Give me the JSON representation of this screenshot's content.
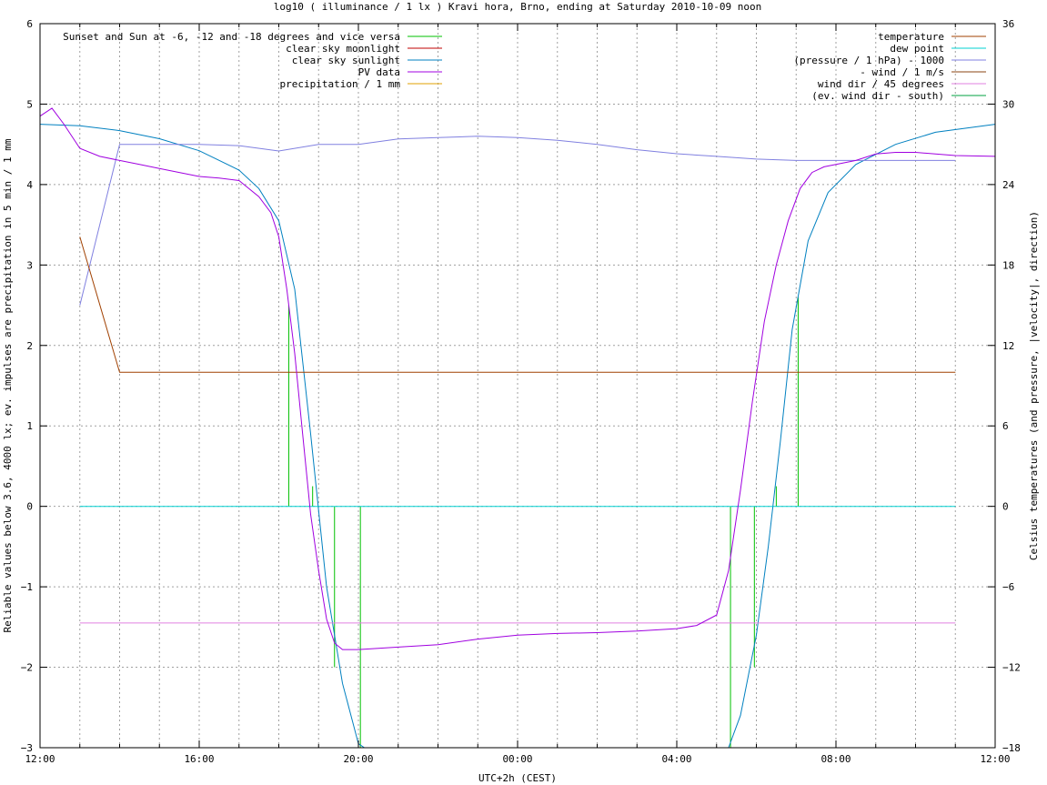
{
  "chart_data": {
    "type": "line",
    "title": "log10 ( illuminance / 1 lx ) Kravi hora, Brno, ending at Saturday 2010-10-09 noon",
    "xlabel": "UTC+2h (CEST)",
    "ylabel": "Reliable values below 3.6, 4000 lx; ev. impulses are precipitation in 5 min / 1 mm",
    "y2label": "Celsius temperatures (and pressure, |velocity|, direction)",
    "x_unit": "hours since 2010-10-08 12:00 (CEST)",
    "xlim": [
      0,
      24
    ],
    "ylim": [
      -3,
      6
    ],
    "y2lim": [
      -18,
      36
    ],
    "grid": true,
    "x_ticks": [
      {
        "value": 0,
        "label": "12:00"
      },
      {
        "value": 4,
        "label": "16:00"
      },
      {
        "value": 8,
        "label": "20:00"
      },
      {
        "value": 12,
        "label": "00:00"
      },
      {
        "value": 16,
        "label": "04:00"
      },
      {
        "value": 20,
        "label": "08:00"
      },
      {
        "value": 24,
        "label": "12:00"
      }
    ],
    "y_ticks": [
      {
        "value": 6,
        "label": "6"
      },
      {
        "value": 5,
        "label": "5"
      },
      {
        "value": 4,
        "label": "4"
      },
      {
        "value": 3,
        "label": "3"
      },
      {
        "value": 2,
        "label": "2"
      },
      {
        "value": 1,
        "label": "1"
      },
      {
        "value": 0,
        "label": "0"
      },
      {
        "value": -1,
        "label": "−1"
      },
      {
        "value": -2,
        "label": "−2"
      },
      {
        "value": -3,
        "label": "−3"
      }
    ],
    "y2_ticks": [
      {
        "value": 36,
        "label": "36"
      },
      {
        "value": 30,
        "label": "30"
      },
      {
        "value": 24,
        "label": "24"
      },
      {
        "value": 18,
        "label": "18"
      },
      {
        "value": 12,
        "label": "12"
      },
      {
        "value": 6,
        "label": "6"
      },
      {
        "value": 0,
        "label": "0"
      },
      {
        "value": -6,
        "label": "−6"
      },
      {
        "value": -12,
        "label": "−12"
      },
      {
        "value": -18,
        "label": "−18"
      }
    ],
    "legend_left": [
      {
        "name": "Sunset and Sun at -6, -12 and -18 degrees and vice versa",
        "color": "#00c000"
      },
      {
        "name": "clear sky moonlight",
        "color": "#c00000"
      },
      {
        "name": "clear sky sunlight",
        "color": "#0080c0"
      },
      {
        "name": "PV data",
        "color": "#a000e0"
      },
      {
        "name": "precipitation / 1 mm",
        "color": "#e0a000"
      }
    ],
    "legend_right": [
      {
        "name": "temperature",
        "color": "#a04000"
      },
      {
        "name": "dew point",
        "color": "#00d0d0"
      },
      {
        "name": "(pressure / 1 hPa) - 1000",
        "color": "#8080e0"
      },
      {
        "name": "- wind / 1 m/s",
        "color": "#8b4513"
      },
      {
        "name": "wind dir / 45 degrees",
        "color": "#e080e0"
      },
      {
        "name": "(ev. wind dir - south)",
        "color": "#00a040"
      }
    ],
    "sun_events": [
      {
        "x": 6.25,
        "y": 2.5
      },
      {
        "x": 6.85,
        "y": 0.25
      },
      {
        "x": 7.4,
        "y": -2.0
      },
      {
        "x": 8.05,
        "y": -3.0
      },
      {
        "x": 17.35,
        "y": -3.0
      },
      {
        "x": 17.95,
        "y": -2.0
      },
      {
        "x": 18.5,
        "y": 0.25
      },
      {
        "x": 19.05,
        "y": 2.6
      }
    ],
    "clear_sky_sunlight": {
      "x": [
        0,
        1,
        2,
        3,
        4,
        5,
        5.5,
        6,
        6.4,
        6.8,
        7.2,
        7.6,
        8.0,
        8.15,
        17.3,
        17.6,
        18.0,
        18.3,
        18.6,
        18.9,
        19.3,
        19.8,
        20.5,
        21.5,
        22.5,
        24
      ],
      "y": [
        4.75,
        4.73,
        4.67,
        4.57,
        4.42,
        4.18,
        3.95,
        3.55,
        2.7,
        0.9,
        -1.0,
        -2.2,
        -2.95,
        -3.0,
        -3.0,
        -2.6,
        -1.6,
        -0.5,
        0.8,
        2.2,
        3.3,
        3.9,
        4.25,
        4.5,
        4.65,
        4.75
      ]
    },
    "pv_data": {
      "x": [
        0,
        0.3,
        0.6,
        1.0,
        1.5,
        2.0,
        2.5,
        3.0,
        3.5,
        4.0,
        4.5,
        5.0,
        5.5,
        5.8,
        6.0,
        6.2,
        6.4,
        6.6,
        6.8,
        7.0,
        7.2,
        7.4,
        7.6,
        8.0,
        9.0,
        10.0,
        11.0,
        12.0,
        13.0,
        14.0,
        15.0,
        16.0,
        16.5,
        17.0,
        17.3,
        17.6,
        17.9,
        18.2,
        18.5,
        18.8,
        19.1,
        19.4,
        19.7,
        20.0,
        20.5,
        21.0,
        21.5,
        22.0,
        22.5,
        23.0,
        24.0
      ],
      "y": [
        4.85,
        4.95,
        4.75,
        4.45,
        4.35,
        4.3,
        4.25,
        4.2,
        4.15,
        4.1,
        4.08,
        4.05,
        3.85,
        3.65,
        3.35,
        2.7,
        1.9,
        0.9,
        -0.1,
        -0.8,
        -1.4,
        -1.7,
        -1.78,
        -1.78,
        -1.75,
        -1.72,
        -1.65,
        -1.6,
        -1.58,
        -1.57,
        -1.55,
        -1.52,
        -1.48,
        -1.35,
        -0.8,
        0.2,
        1.3,
        2.3,
        3.0,
        3.55,
        3.95,
        4.15,
        4.22,
        4.25,
        4.3,
        4.38,
        4.4,
        4.4,
        4.38,
        4.36,
        4.35
      ]
    },
    "temperature": {
      "x": [
        1.0,
        2.0,
        23.0
      ],
      "y": [
        20.1,
        10.0,
        10.0
      ]
    },
    "dew_point": {
      "x": [
        1.0,
        23.0
      ],
      "y": [
        0.0,
        0.0
      ]
    },
    "pressure": {
      "x": [
        1.0,
        2.0,
        3.0,
        4.0,
        5.0,
        6.0,
        7.0,
        8.0,
        9.0,
        10.0,
        11.0,
        12.0,
        13.0,
        14.0,
        15.0,
        16.0,
        17.0,
        18.0,
        19.0,
        20.0,
        21.0,
        22.0,
        23.0
      ],
      "y": [
        15.0,
        27.0,
        27.0,
        27.0,
        26.9,
        26.5,
        27.0,
        27.0,
        27.4,
        27.5,
        27.6,
        27.5,
        27.3,
        27.0,
        26.6,
        26.3,
        26.1,
        25.9,
        25.8,
        25.8,
        25.8,
        25.8,
        25.8
      ]
    },
    "wind_dir": {
      "x": [
        1.0,
        23.0
      ],
      "y": [
        -1.45,
        -1.45
      ]
    }
  }
}
